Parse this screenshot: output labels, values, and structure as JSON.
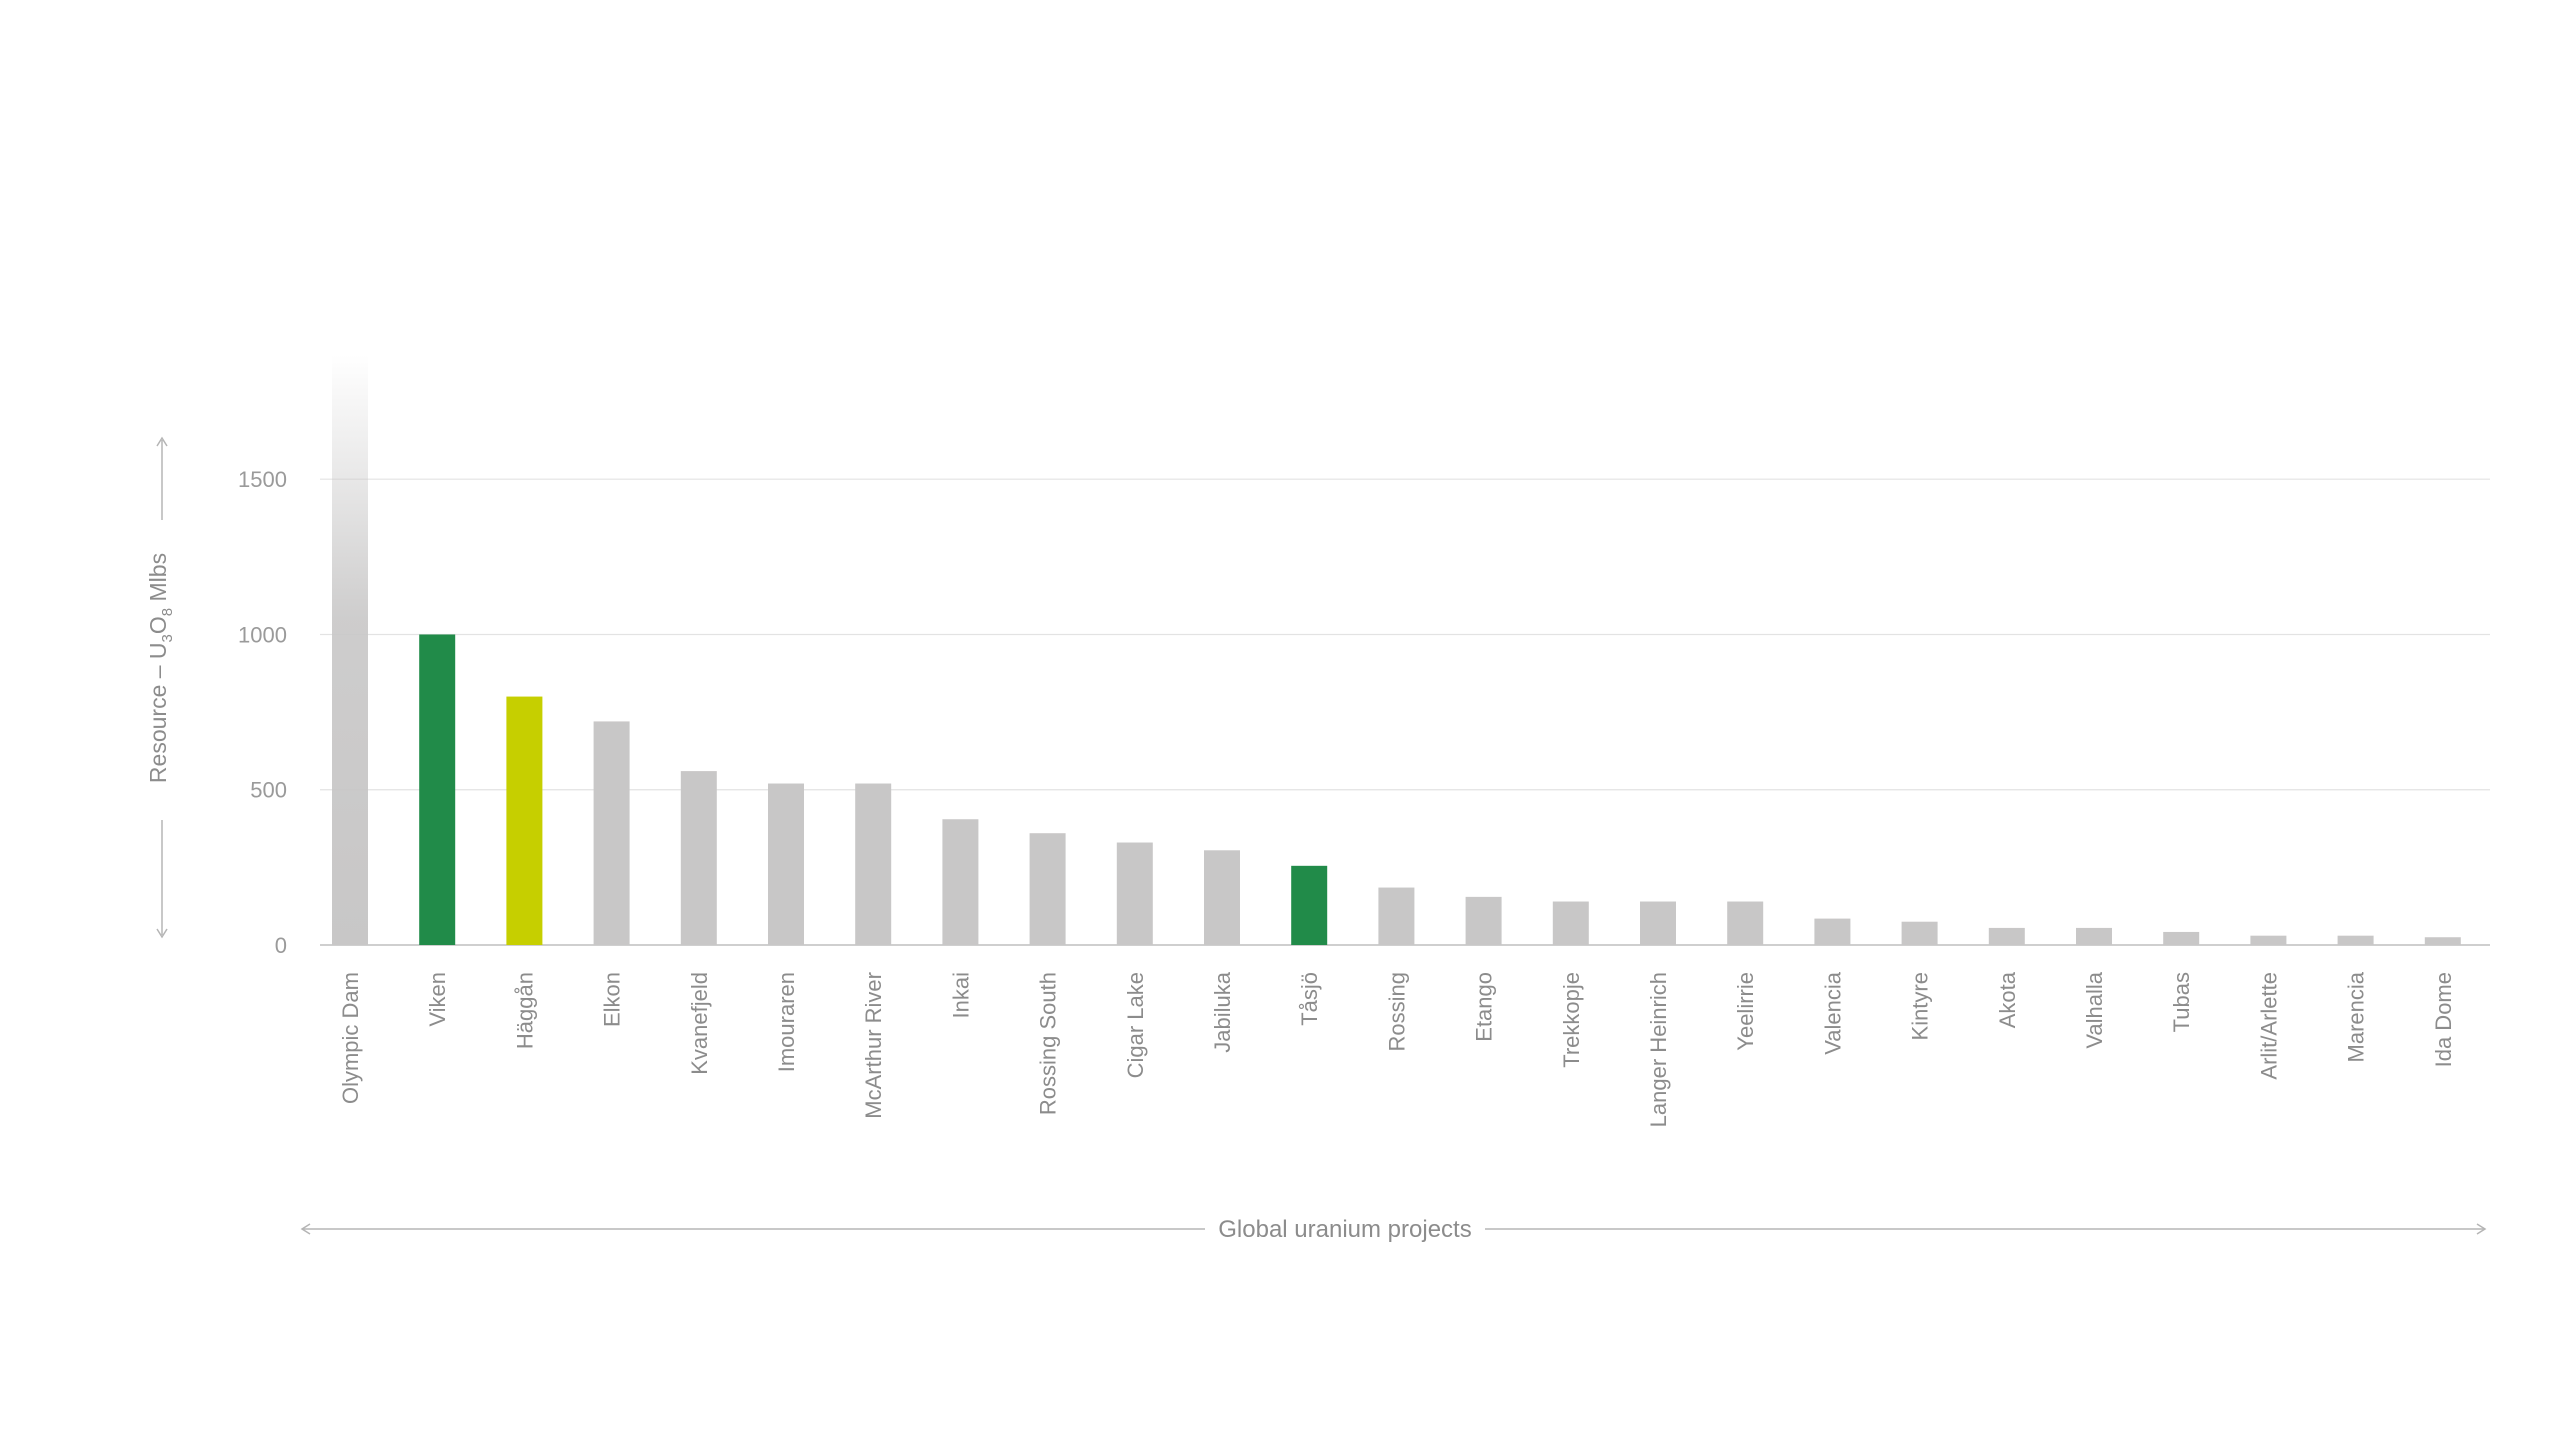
{
  "chart_data": {
    "type": "bar",
    "categories": [
      "Olympic Dam",
      "Viken",
      "Häggån",
      "Elkon",
      "Kvanefjeld",
      "Imouraren",
      "McArthur River",
      "Inkai",
      "Rossing South",
      "Cigar Lake",
      "Jabiluka",
      "Tåsjö",
      "Rossing",
      "Etango",
      "Trekkopje",
      "Langer Heinrich",
      "Yeelirrie",
      "Valencia",
      "Kintyre",
      "Akota",
      "Valhalla",
      "Tubas",
      "Arlit/Arlette",
      "Marencia",
      "Ida Dome"
    ],
    "values": [
      1900,
      1000,
      800,
      720,
      560,
      520,
      520,
      405,
      360,
      330,
      305,
      255,
      185,
      155,
      140,
      140,
      140,
      85,
      75,
      55,
      55,
      42,
      30,
      30,
      25
    ],
    "colors": [
      "#c8c7c7",
      "#218b49",
      "#c6cf00",
      "#c8c7c7",
      "#c8c7c7",
      "#c8c7c7",
      "#c8c7c7",
      "#c8c7c7",
      "#c8c7c7",
      "#c8c7c7",
      "#c8c7c7",
      "#218b49",
      "#c8c7c7",
      "#c8c7c7",
      "#c8c7c7",
      "#c8c7c7",
      "#c8c7c7",
      "#c8c7c7",
      "#c8c7c7",
      "#c8c7c7",
      "#c8c7c7",
      "#c8c7c7",
      "#c8c7c7",
      "#c8c7c7",
      "#c8c7c7"
    ],
    "faded_top": [
      true,
      false,
      false,
      false,
      false,
      false,
      false,
      false,
      false,
      false,
      false,
      false,
      false,
      false,
      false,
      false,
      false,
      false,
      false,
      false,
      false,
      false,
      false,
      false,
      false
    ],
    "yticks": [
      0,
      500,
      1000,
      1500
    ],
    "ylim": [
      0,
      1900
    ],
    "ylabel": {
      "prefix": "Resource – U",
      "sub1": "3",
      "mid": "O",
      "sub2": "8",
      "suffix": " Mlbs"
    },
    "xlabel": "Global uranium projects",
    "grid": true,
    "axis_color": "#c8c8c8"
  }
}
